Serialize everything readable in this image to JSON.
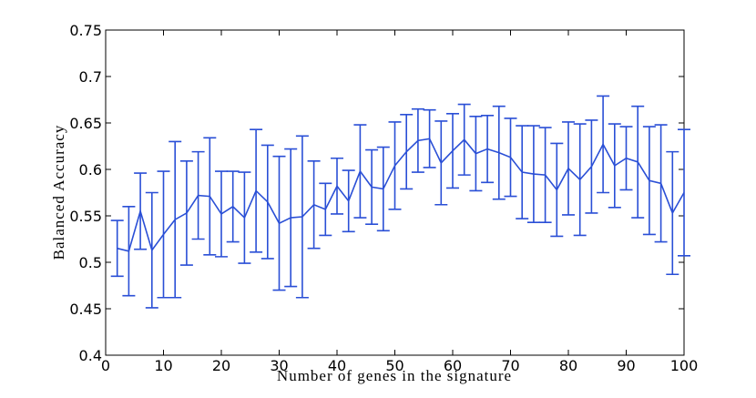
{
  "chart_data": {
    "type": "line",
    "xlabel": "Number of genes in the signature",
    "ylabel": "Balanced Accuracy",
    "x": [
      2,
      4,
      6,
      8,
      10,
      12,
      14,
      16,
      18,
      20,
      22,
      24,
      26,
      28,
      30,
      32,
      34,
      36,
      38,
      40,
      42,
      44,
      46,
      48,
      50,
      52,
      54,
      56,
      58,
      60,
      62,
      64,
      66,
      68,
      70,
      72,
      74,
      76,
      78,
      80,
      82,
      84,
      86,
      88,
      90,
      92,
      94,
      96,
      98,
      100
    ],
    "series": [
      {
        "color": "#2a4fd6",
        "values": [
          0.515,
          0.512,
          0.555,
          0.513,
          0.53,
          0.546,
          0.553,
          0.572,
          0.571,
          0.552,
          0.56,
          0.548,
          0.577,
          0.565,
          0.542,
          0.548,
          0.549,
          0.562,
          0.557,
          0.582,
          0.566,
          0.598,
          0.581,
          0.579,
          0.604,
          0.619,
          0.631,
          0.633,
          0.607,
          0.62,
          0.632,
          0.617,
          0.622,
          0.618,
          0.613,
          0.597,
          0.595,
          0.594,
          0.578,
          0.601,
          0.589,
          0.603,
          0.627,
          0.604,
          0.612,
          0.608,
          0.588,
          0.585,
          0.553,
          0.575
        ],
        "errors": [
          0.03,
          0.048,
          0.041,
          0.062,
          0.068,
          0.084,
          0.056,
          0.047,
          0.063,
          0.046,
          0.038,
          0.049,
          0.066,
          0.061,
          0.072,
          0.074,
          0.087,
          0.047,
          0.028,
          0.03,
          0.033,
          0.05,
          0.04,
          0.045,
          0.047,
          0.04,
          0.034,
          0.031,
          0.045,
          0.04,
          0.038,
          0.04,
          0.036,
          0.05,
          0.042,
          0.05,
          0.052,
          0.051,
          0.05,
          0.05,
          0.06,
          0.05,
          0.052,
          0.045,
          0.034,
          0.06,
          0.058,
          0.063,
          0.066,
          0.068
        ]
      }
    ],
    "xlim": [
      0,
      100
    ],
    "ylim": [
      0.4,
      0.75
    ],
    "xticks": [
      0,
      10,
      20,
      30,
      40,
      50,
      60,
      70,
      80,
      90,
      100
    ],
    "yticks": [
      0.4,
      0.45,
      0.5,
      0.55,
      0.6,
      0.65,
      0.7,
      0.75
    ]
  }
}
